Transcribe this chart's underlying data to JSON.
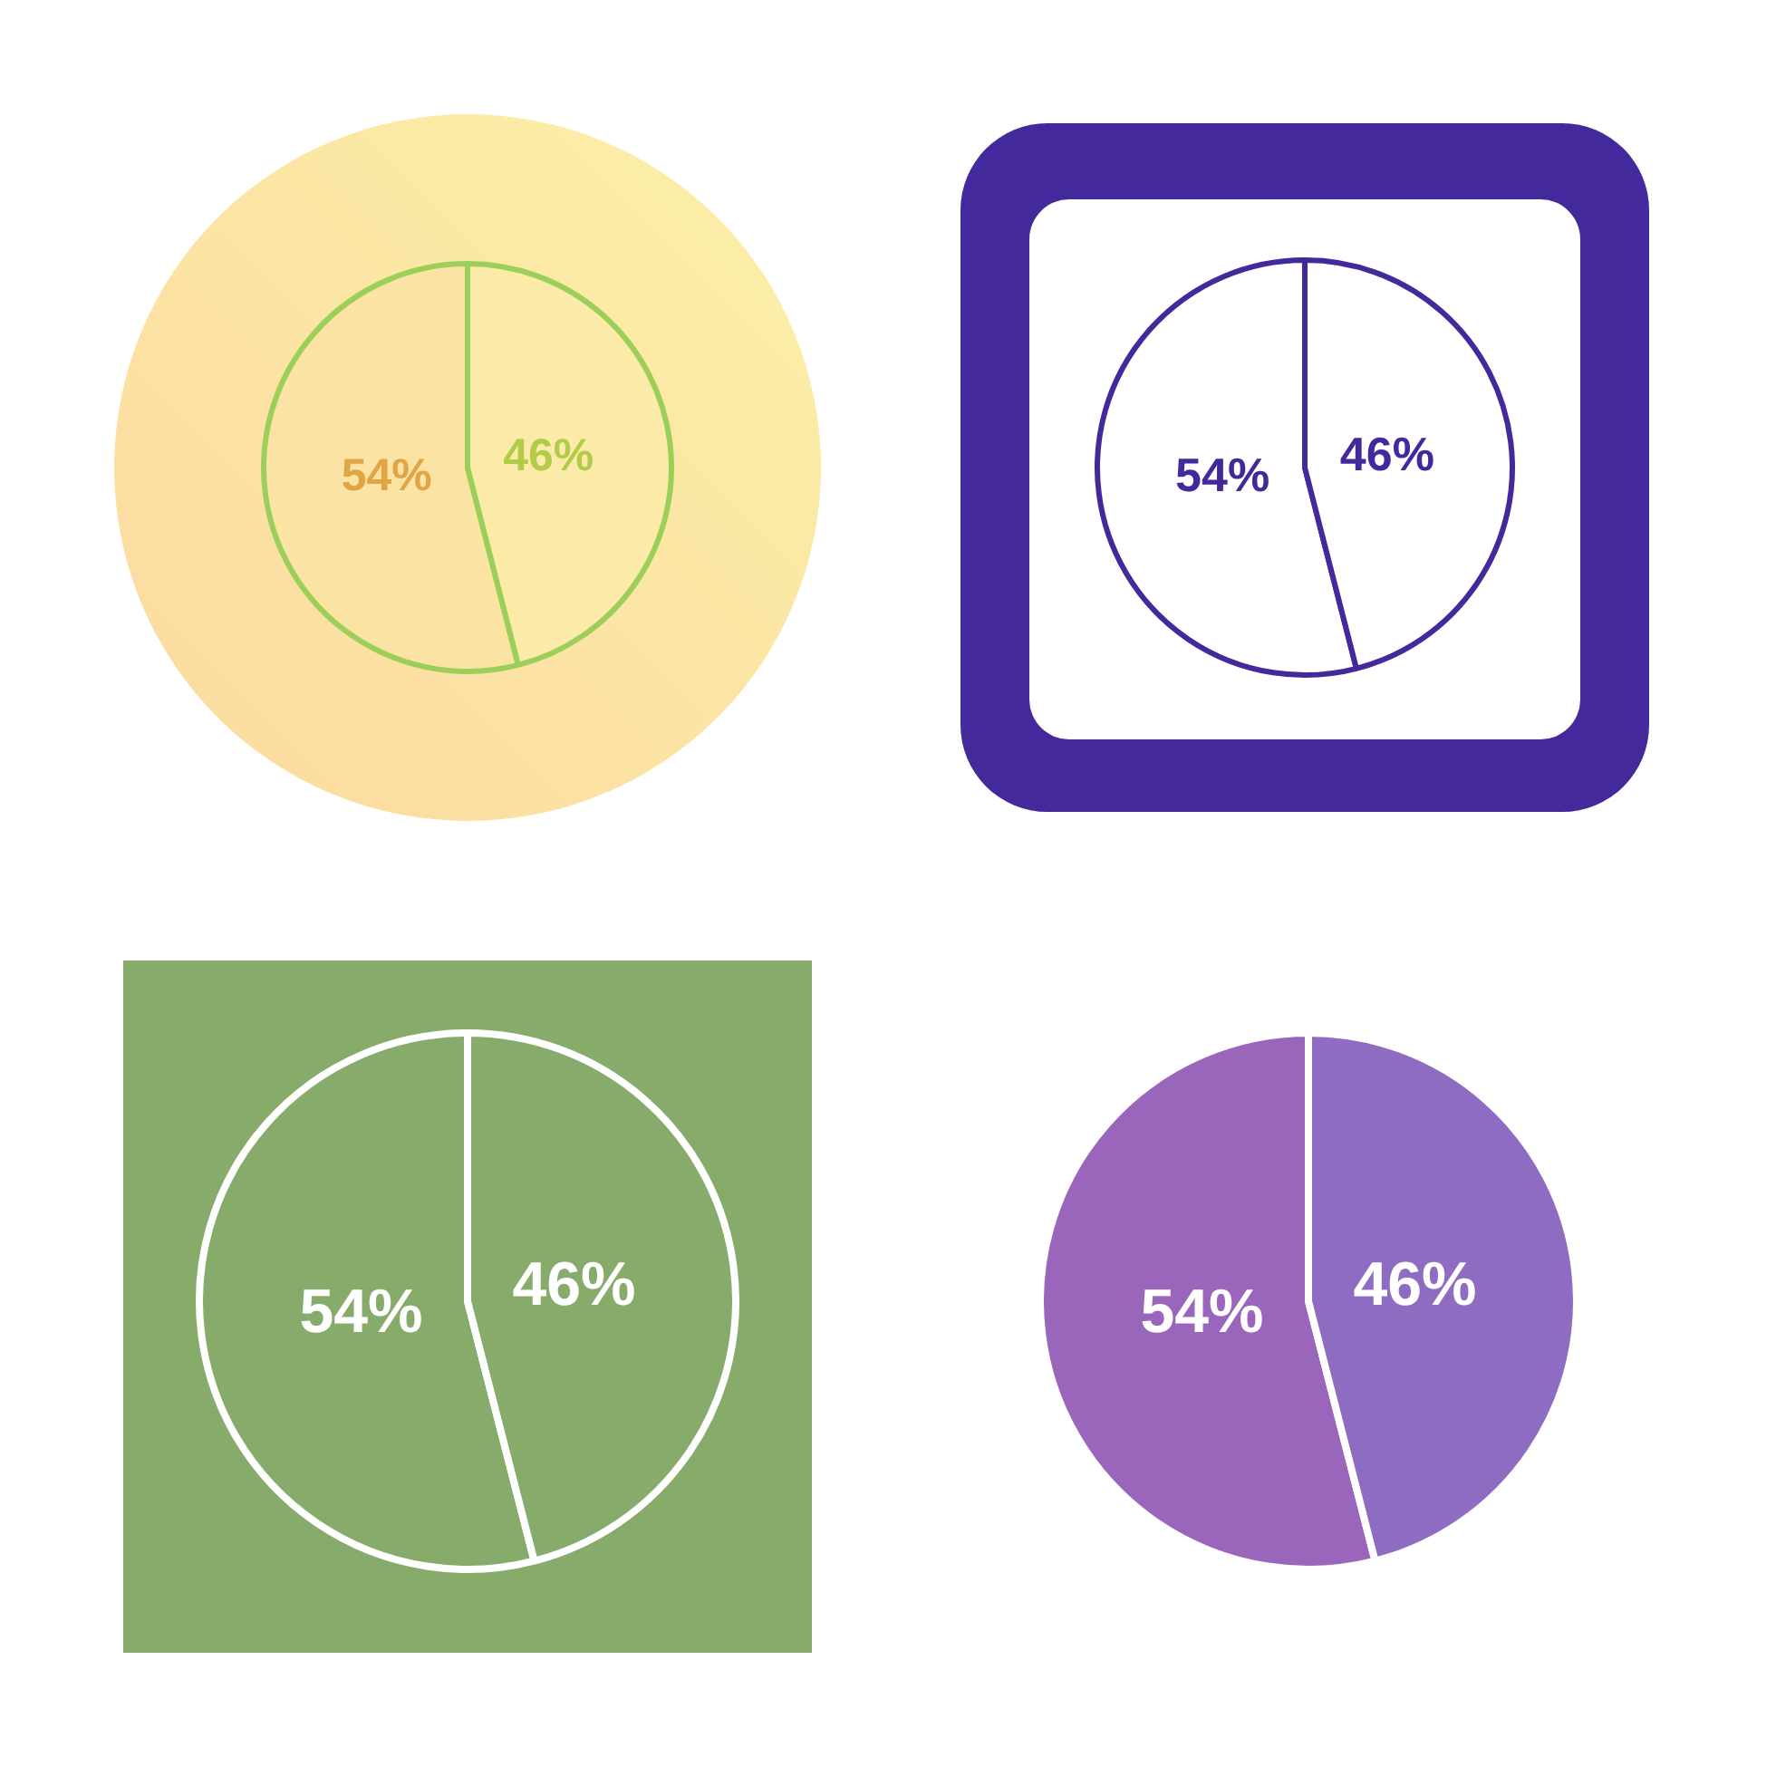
{
  "chart_data": [
    {
      "type": "pie",
      "categories": [
        null,
        null
      ],
      "values": [
        54,
        46
      ],
      "colors": [
        "#fbe3a3",
        "#fbeaa8"
      ],
      "value_labels": [
        "54%",
        "46%"
      ]
    },
    {
      "type": "pie",
      "categories": [
        null,
        null
      ],
      "values": [
        54,
        46
      ],
      "colors": [
        "#ffffff",
        "#ffffff"
      ],
      "value_labels": [
        "54%",
        "46%"
      ]
    },
    {
      "type": "pie",
      "categories": [
        null,
        null
      ],
      "values": [
        54,
        46
      ],
      "colors": [
        "#86ab6a",
        "#86ab6a"
      ],
      "value_labels": [
        "54%",
        "46%"
      ]
    },
    {
      "type": "pie",
      "categories": [
        null,
        null
      ],
      "values": [
        54,
        46
      ],
      "colors": [
        "#9a66bc",
        "#8e6cc2"
      ],
      "value_labels": [
        "54%",
        "46%"
      ]
    }
  ]
}
